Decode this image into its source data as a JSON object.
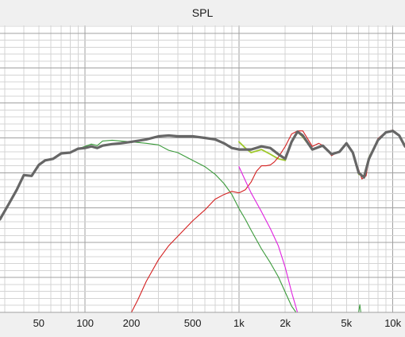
{
  "colors": {
    "background": "#f0f0f0",
    "plot_background": "#ffffff",
    "grid_major": "#a0a0a0",
    "grid_minor": "#d4d4d4"
  },
  "chart_data": {
    "type": "line",
    "title": "SPL",
    "xlabel": "",
    "ylabel": "",
    "xscale": "log",
    "xlim": [
      28,
      12000
    ],
    "ylim": [
      0,
      370
    ],
    "grid": true,
    "x_tick_labels": [
      {
        "value": 50,
        "label": "50"
      },
      {
        "value": 100,
        "label": "100"
      },
      {
        "value": 200,
        "label": "200"
      },
      {
        "value": 500,
        "label": "500"
      },
      {
        "value": 1000,
        "label": "1k"
      },
      {
        "value": 2000,
        "label": "2k"
      },
      {
        "value": 5000,
        "label": "5k"
      },
      {
        "value": 10000,
        "label": "10k"
      }
    ],
    "series": [
      {
        "color": "#3a9a3a",
        "width": 1.1,
        "points": [
          [
            28,
            120
          ],
          [
            32,
            140
          ],
          [
            36,
            158
          ],
          [
            40,
            177
          ],
          [
            45,
            176
          ],
          [
            50,
            190
          ],
          [
            55,
            196
          ],
          [
            62,
            198
          ],
          [
            70,
            205
          ],
          [
            80,
            206
          ],
          [
            90,
            211
          ],
          [
            100,
            214
          ],
          [
            110,
            217
          ],
          [
            120,
            215
          ],
          [
            130,
            221
          ],
          [
            150,
            222
          ],
          [
            170,
            221
          ],
          [
            200,
            220
          ],
          [
            250,
            218
          ],
          [
            300,
            216
          ],
          [
            350,
            209
          ],
          [
            400,
            206
          ],
          [
            500,
            196
          ],
          [
            600,
            188
          ],
          [
            700,
            178
          ],
          [
            800,
            166
          ],
          [
            900,
            152
          ],
          [
            1000,
            134
          ],
          [
            1100,
            120
          ],
          [
            1200,
            106
          ],
          [
            1400,
            82
          ],
          [
            1600,
            64
          ],
          [
            1800,
            46
          ],
          [
            2000,
            26
          ],
          [
            2200,
            8
          ],
          [
            2350,
            0
          ]
        ]
      },
      {
        "color": "#9ec82a",
        "width": 1.8,
        "points": [
          [
            1000,
            220
          ],
          [
            1100,
            212
          ],
          [
            1200,
            206
          ],
          [
            1400,
            210
          ],
          [
            1600,
            204
          ],
          [
            1800,
            198
          ],
          [
            2000,
            196
          ],
          [
            2200,
            220
          ],
          [
            2400,
            233
          ],
          [
            2600,
            226
          ],
          [
            3000,
            210
          ],
          [
            3500,
            215
          ],
          [
            4000,
            204
          ],
          [
            4500,
            207
          ],
          [
            5000,
            218
          ],
          [
            5500,
            206
          ],
          [
            6000,
            178
          ],
          [
            6500,
            176
          ],
          [
            7000,
            200
          ],
          [
            8000,
            222
          ],
          [
            9000,
            232
          ],
          [
            10000,
            234
          ],
          [
            11000,
            228
          ],
          [
            12000,
            216
          ]
        ]
      },
      {
        "color": "#d42020",
        "width": 1.1,
        "points": [
          [
            200,
            0
          ],
          [
            220,
            16
          ],
          [
            250,
            40
          ],
          [
            300,
            68
          ],
          [
            350,
            86
          ],
          [
            400,
            98
          ],
          [
            500,
            118
          ],
          [
            600,
            132
          ],
          [
            700,
            146
          ],
          [
            800,
            152
          ],
          [
            900,
            156
          ],
          [
            1000,
            154
          ],
          [
            1100,
            158
          ],
          [
            1200,
            168
          ],
          [
            1300,
            182
          ],
          [
            1400,
            189
          ],
          [
            1500,
            189
          ],
          [
            1600,
            190
          ],
          [
            1700,
            194
          ],
          [
            1800,
            200
          ],
          [
            2000,
            214
          ],
          [
            2200,
            230
          ],
          [
            2400,
            234
          ],
          [
            2600,
            234
          ],
          [
            3000,
            214
          ],
          [
            3300,
            218
          ],
          [
            3600,
            214
          ],
          [
            4000,
            202
          ],
          [
            4500,
            208
          ],
          [
            5000,
            218
          ],
          [
            5500,
            206
          ],
          [
            6000,
            184
          ],
          [
            6300,
            172
          ],
          [
            6700,
            176
          ],
          [
            7000,
            198
          ],
          [
            8000,
            224
          ],
          [
            9000,
            233
          ],
          [
            10000,
            235
          ],
          [
            11000,
            228
          ],
          [
            12000,
            214
          ]
        ]
      },
      {
        "color": "#e020e0",
        "width": 1.1,
        "points": [
          [
            1000,
            188
          ],
          [
            1100,
            170
          ],
          [
            1200,
            154
          ],
          [
            1400,
            130
          ],
          [
            1600,
            108
          ],
          [
            1800,
            86
          ],
          [
            2000,
            58
          ],
          [
            2200,
            26
          ],
          [
            2400,
            0
          ]
        ]
      },
      {
        "color": "#666666",
        "width": 3.2,
        "points": [
          [
            28,
            120
          ],
          [
            32,
            140
          ],
          [
            36,
            158
          ],
          [
            40,
            177
          ],
          [
            45,
            176
          ],
          [
            50,
            190
          ],
          [
            55,
            196
          ],
          [
            62,
            198
          ],
          [
            70,
            205
          ],
          [
            80,
            206
          ],
          [
            90,
            211
          ],
          [
            100,
            212
          ],
          [
            110,
            214
          ],
          [
            120,
            212
          ],
          [
            130,
            215
          ],
          [
            150,
            217
          ],
          [
            170,
            218
          ],
          [
            200,
            220
          ],
          [
            250,
            223
          ],
          [
            300,
            227
          ],
          [
            350,
            228
          ],
          [
            400,
            227
          ],
          [
            500,
            227
          ],
          [
            600,
            225
          ],
          [
            700,
            223
          ],
          [
            800,
            218
          ],
          [
            900,
            212
          ],
          [
            1000,
            210
          ],
          [
            1100,
            210
          ],
          [
            1200,
            210
          ],
          [
            1400,
            214
          ],
          [
            1600,
            212
          ],
          [
            1800,
            204
          ],
          [
            2000,
            198
          ],
          [
            2200,
            220
          ],
          [
            2400,
            233
          ],
          [
            2600,
            228
          ],
          [
            3000,
            210
          ],
          [
            3500,
            215
          ],
          [
            4000,
            204
          ],
          [
            4500,
            207
          ],
          [
            5000,
            218
          ],
          [
            5500,
            206
          ],
          [
            6000,
            180
          ],
          [
            6500,
            174
          ],
          [
            7000,
            198
          ],
          [
            8000,
            222
          ],
          [
            9000,
            232
          ],
          [
            10000,
            234
          ],
          [
            11000,
            228
          ],
          [
            12000,
            214
          ]
        ]
      },
      {
        "color": "#3a9a3a",
        "width": 1,
        "points": [
          [
            6000,
            0
          ],
          [
            6100,
            10
          ],
          [
            6200,
            0
          ]
        ]
      }
    ]
  }
}
